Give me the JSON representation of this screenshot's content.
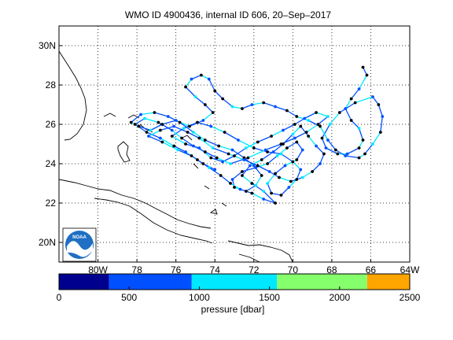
{
  "chart_data": {
    "type": "map-trajectory",
    "title": "WMO ID 4900436, internal ID 606, 20–Sep–2017",
    "xlim": [
      -82,
      -64
    ],
    "ylim": [
      19,
      31
    ],
    "x_ticks": [
      {
        "value": -80,
        "label": "80W"
      },
      {
        "value": -78,
        "label": "78"
      },
      {
        "value": -76,
        "label": "76"
      },
      {
        "value": -74,
        "label": "74"
      },
      {
        "value": -72,
        "label": "72"
      },
      {
        "value": -70,
        "label": "70"
      },
      {
        "value": -68,
        "label": "68"
      },
      {
        "value": -66,
        "label": "66"
      },
      {
        "value": -64,
        "label": "64W"
      }
    ],
    "y_ticks": [
      {
        "value": 20,
        "label": "20N"
      },
      {
        "value": 22,
        "label": "22"
      },
      {
        "value": 24,
        "label": "24"
      },
      {
        "value": 26,
        "label": "26"
      },
      {
        "value": 28,
        "label": "28"
      },
      {
        "value": 30,
        "label": "30N"
      }
    ],
    "grid": true,
    "logo_text": "NOAA",
    "colorbar": {
      "label": "pressure [dbar]",
      "range": [
        0,
        2500
      ],
      "tick_values": [
        0,
        500,
        1000,
        1500,
        2000,
        2500
      ],
      "tick_labels": [
        "0",
        "500",
        "1000",
        "1500",
        "2000",
        "2500"
      ],
      "bins": [
        {
          "from": 0,
          "to": 357,
          "color": "#00008f"
        },
        {
          "from": 357,
          "to": 946,
          "color": "#0050ff"
        },
        {
          "from": 946,
          "to": 1554,
          "color": "#00e8ff"
        },
        {
          "from": 1554,
          "to": 2196,
          "color": "#86ff6c"
        },
        {
          "from": 2196,
          "to": 2500,
          "color": "#ffa500"
        }
      ]
    },
    "track": [
      [
        -66.4,
        28.9
      ],
      [
        -66.2,
        28.5
      ],
      [
        -66.6,
        27.8
      ],
      [
        -67.0,
        27.3
      ],
      [
        -67.3,
        26.8
      ],
      [
        -67.0,
        26.2
      ],
      [
        -66.6,
        25.8
      ],
      [
        -66.4,
        25.2
      ],
      [
        -66.6,
        24.8
      ],
      [
        -67.2,
        24.5
      ],
      [
        -67.7,
        24.5
      ],
      [
        -68.3,
        24.8
      ],
      [
        -68.5,
        25.3
      ],
      [
        -68.1,
        26.0
      ],
      [
        -67.6,
        26.6
      ],
      [
        -66.8,
        27.1
      ],
      [
        -65.9,
        27.4
      ],
      [
        -65.6,
        27.0
      ],
      [
        -65.4,
        26.4
      ],
      [
        -65.5,
        25.6
      ],
      [
        -65.9,
        25.0
      ],
      [
        -66.3,
        24.5
      ],
      [
        -66.6,
        24.3
      ],
      [
        -67.3,
        24.4
      ],
      [
        -67.8,
        24.7
      ],
      [
        -68.2,
        25.2
      ],
      [
        -68.6,
        25.9
      ],
      [
        -69.2,
        26.2
      ],
      [
        -69.8,
        26.4
      ],
      [
        -70.3,
        26.7
      ],
      [
        -70.9,
        26.9
      ],
      [
        -71.5,
        27.1
      ],
      [
        -72.1,
        27.0
      ],
      [
        -72.6,
        26.8
      ],
      [
        -73.1,
        26.9
      ],
      [
        -73.6,
        27.3
      ],
      [
        -74.0,
        27.7
      ],
      [
        -74.3,
        28.3
      ],
      [
        -74.7,
        28.5
      ],
      [
        -75.2,
        28.3
      ],
      [
        -75.5,
        27.9
      ],
      [
        -75.0,
        27.4
      ],
      [
        -74.5,
        27.0
      ],
      [
        -74.1,
        26.6
      ],
      [
        -74.6,
        26.2
      ],
      [
        -75.3,
        25.9
      ],
      [
        -76.0,
        26.2
      ],
      [
        -76.7,
        26.0
      ],
      [
        -77.3,
        25.7
      ],
      [
        -77.9,
        25.9
      ],
      [
        -78.3,
        26.1
      ],
      [
        -77.8,
        26.5
      ],
      [
        -77.1,
        26.6
      ],
      [
        -76.4,
        26.4
      ],
      [
        -75.8,
        26.1
      ],
      [
        -75.1,
        25.6
      ],
      [
        -74.5,
        25.2
      ],
      [
        -73.8,
        24.9
      ],
      [
        -73.1,
        24.7
      ],
      [
        -72.5,
        24.3
      ],
      [
        -72.0,
        23.9
      ],
      [
        -71.6,
        23.4
      ],
      [
        -71.9,
        22.9
      ],
      [
        -72.4,
        22.6
      ],
      [
        -73.0,
        22.8
      ],
      [
        -73.1,
        23.2
      ],
      [
        -72.6,
        23.6
      ],
      [
        -71.9,
        23.8
      ],
      [
        -71.3,
        24.0
      ],
      [
        -70.8,
        24.4
      ],
      [
        -70.3,
        24.8
      ],
      [
        -69.8,
        25.1
      ],
      [
        -69.5,
        24.7
      ],
      [
        -69.8,
        24.2
      ],
      [
        -70.4,
        23.9
      ],
      [
        -70.9,
        23.5
      ],
      [
        -71.3,
        23.0
      ],
      [
        -71.1,
        22.5
      ],
      [
        -70.6,
        22.4
      ],
      [
        -70.2,
        22.8
      ],
      [
        -69.8,
        23.2
      ],
      [
        -69.6,
        23.7
      ],
      [
        -70.0,
        24.1
      ],
      [
        -70.6,
        24.5
      ],
      [
        -71.3,
        24.6
      ],
      [
        -72.0,
        24.8
      ],
      [
        -72.8,
        25.2
      ],
      [
        -73.5,
        25.6
      ],
      [
        -74.2,
        25.9
      ],
      [
        -74.9,
        26.1
      ],
      [
        -75.6,
        25.8
      ],
      [
        -76.2,
        25.4
      ],
      [
        -75.5,
        25.0
      ],
      [
        -74.8,
        24.8
      ],
      [
        -74.2,
        24.3
      ],
      [
        -73.6,
        24.1
      ],
      [
        -73.0,
        24.4
      ],
      [
        -72.4,
        24.8
      ],
      [
        -71.8,
        25.1
      ],
      [
        -71.1,
        25.4
      ],
      [
        -70.5,
        25.7
      ],
      [
        -69.9,
        26.0
      ],
      [
        -69.4,
        26.3
      ],
      [
        -68.8,
        26.6
      ],
      [
        -68.2,
        26.4
      ],
      [
        -68.7,
        26.0
      ],
      [
        -69.3,
        25.6
      ],
      [
        -69.9,
        25.3
      ],
      [
        -70.6,
        25.0
      ],
      [
        -71.4,
        24.7
      ],
      [
        -72.3,
        24.3
      ],
      [
        -73.2,
        24.0
      ],
      [
        -73.9,
        24.3
      ],
      [
        -74.5,
        24.6
      ],
      [
        -75.1,
        24.9
      ],
      [
        -75.7,
        25.3
      ],
      [
        -76.2,
        25.7
      ],
      [
        -76.9,
        26.1
      ],
      [
        -77.6,
        26.3
      ],
      [
        -78.1,
        26.0
      ],
      [
        -77.5,
        25.6
      ],
      [
        -76.8,
        25.3
      ],
      [
        -76.1,
        24.9
      ],
      [
        -75.5,
        24.6
      ],
      [
        -74.9,
        24.2
      ],
      [
        -74.3,
        23.8
      ],
      [
        -73.7,
        23.4
      ],
      [
        -73.2,
        23.0
      ],
      [
        -72.7,
        22.7
      ],
      [
        -72.1,
        22.5
      ],
      [
        -71.5,
        22.2
      ],
      [
        -70.9,
        22.0
      ],
      [
        -71.5,
        22.6
      ],
      [
        -72.1,
        23.0
      ],
      [
        -72.6,
        23.4
      ],
      [
        -72.2,
        23.9
      ],
      [
        -71.6,
        24.2
      ],
      [
        -71.0,
        24.6
      ],
      [
        -70.5,
        25.0
      ],
      [
        -70.0,
        25.5
      ],
      [
        -69.6,
        25.9
      ],
      [
        -69.2,
        25.4
      ],
      [
        -68.8,
        24.9
      ],
      [
        -68.4,
        24.5
      ],
      [
        -68.6,
        24.0
      ],
      [
        -69.0,
        23.6
      ],
      [
        -69.5,
        23.3
      ],
      [
        -70.1,
        23.1
      ],
      [
        -70.7,
        23.3
      ],
      [
        -71.2,
        23.6
      ],
      [
        -71.8,
        23.9
      ],
      [
        -72.5,
        24.2
      ],
      [
        -73.3,
        24.5
      ],
      [
        -74.1,
        24.8
      ],
      [
        -74.8,
        25.3
      ],
      [
        -75.4,
        25.6
      ],
      [
        -76.1,
        25.9
      ],
      [
        -76.8,
        25.7
      ],
      [
        -77.4,
        25.4
      ],
      [
        -76.7,
        25.1
      ],
      [
        -75.9,
        24.7
      ],
      [
        -75.2,
        24.4
      ],
      [
        -74.6,
        24.0
      ],
      [
        -74.0,
        23.7
      ]
    ]
  }
}
